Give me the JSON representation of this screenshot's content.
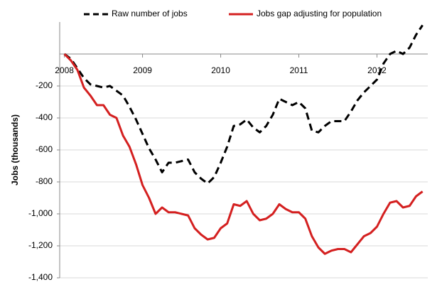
{
  "chart_data": {
    "type": "line",
    "y_label": "Jobs (thousands)",
    "x": [
      2008,
      2008.083,
      2008.167,
      2008.25,
      2008.333,
      2008.417,
      2008.5,
      2008.583,
      2008.667,
      2008.75,
      2008.833,
      2008.917,
      2009,
      2009.083,
      2009.167,
      2009.25,
      2009.333,
      2009.417,
      2009.5,
      2009.583,
      2009.667,
      2009.75,
      2009.833,
      2009.917,
      2010,
      2010.083,
      2010.167,
      2010.25,
      2010.333,
      2010.417,
      2010.5,
      2010.583,
      2010.667,
      2010.75,
      2010.833,
      2010.917,
      2011,
      2011.083,
      2011.167,
      2011.25,
      2011.333,
      2011.417,
      2011.5,
      2011.583,
      2011.667,
      2011.75,
      2011.833,
      2011.917,
      2012,
      2012.083,
      2012.167,
      2012.25,
      2012.333,
      2012.417,
      2012.5,
      2012.583
    ],
    "series": [
      {
        "name": "Raw number of jobs",
        "color": "#000000",
        "dash": true,
        "values": [
          0,
          -30,
          -90,
          -150,
          -190,
          -200,
          -210,
          -200,
          -230,
          -260,
          -330,
          -410,
          -500,
          -590,
          -660,
          -740,
          -680,
          -680,
          -670,
          -660,
          -740,
          -780,
          -810,
          -770,
          -680,
          -580,
          -450,
          -440,
          -410,
          -460,
          -490,
          -450,
          -380,
          -280,
          -300,
          -320,
          -300,
          -340,
          -480,
          -490,
          -450,
          -420,
          -420,
          -420,
          -360,
          -290,
          -240,
          -200,
          -160,
          -60,
          0,
          20,
          0,
          40,
          120,
          180
        ]
      },
      {
        "name": "Jobs gap adjusting for population",
        "color": "#d42020",
        "dash": false,
        "values": [
          0,
          -40,
          -100,
          -210,
          -260,
          -320,
          -320,
          -380,
          -400,
          -510,
          -580,
          -690,
          -820,
          -900,
          -1000,
          -960,
          -990,
          -990,
          -1000,
          -1010,
          -1090,
          -1130,
          -1160,
          -1150,
          -1090,
          -1060,
          -940,
          -950,
          -920,
          -1000,
          -1040,
          -1030,
          -1000,
          -940,
          -970,
          -990,
          -990,
          -1030,
          -1140,
          -1210,
          -1250,
          -1230,
          -1220,
          -1220,
          -1240,
          -1190,
          -1140,
          -1120,
          -1080,
          -1000,
          -930,
          -920,
          -960,
          -950,
          -890,
          -860
        ]
      }
    ],
    "xlim": [
      2007.94,
      2012.65
    ],
    "xticks": [
      2008,
      2009,
      2010,
      2011,
      2012
    ],
    "ylim": [
      -1400,
      200
    ],
    "yticks": [
      -200,
      -400,
      -600,
      -800,
      {
        "value": -1000,
        "label": "-1,000"
      },
      {
        "value": -1200,
        "label": "-1,200"
      },
      {
        "value": -1400,
        "label": "-1,400"
      }
    ],
    "grid": true
  }
}
